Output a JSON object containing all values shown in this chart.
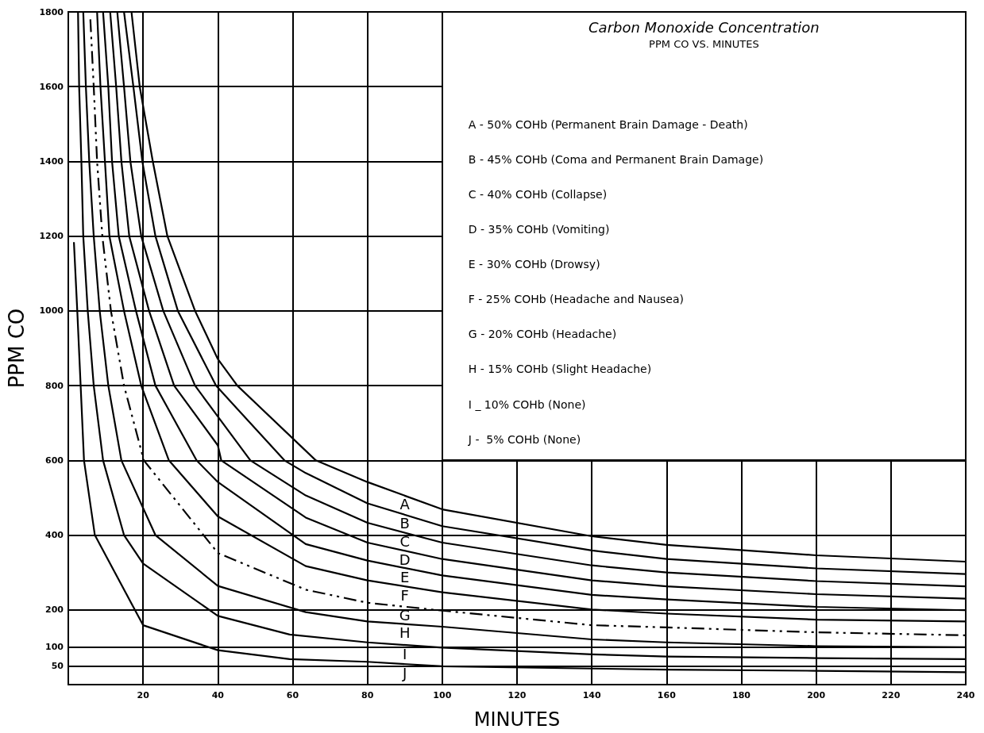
{
  "chart_data": {
    "type": "line",
    "title": "Carbon Monoxide Concentration",
    "subtitle": "PPM CO VS. MINUTES",
    "xlabel": "MINUTES",
    "ylabel": "PPM CO",
    "xlim": [
      0,
      240
    ],
    "xticks": [
      20,
      40,
      60,
      80,
      100,
      120,
      140,
      160,
      180,
      200,
      220,
      240
    ],
    "ylim": [
      0,
      1800
    ],
    "yticks": [
      50,
      100,
      200,
      400,
      600,
      800,
      1000,
      1200,
      1400,
      1600,
      1800
    ],
    "grid": true,
    "legend": false,
    "line_style": "solid",
    "annotations": [
      "A - 50% COHb (Permanent Brain Damage - Death)",
      "B - 45% COHb (Coma and Permanent Brain Damage)",
      "C - 40% COHb (Collapse)",
      "D - 35% COHb (Vomiting)",
      "E - 30% COHb (Drowsy)",
      "F - 25% COHb (Headache and Nausea)",
      "G - 20% COHb (Headache)",
      "H - 15% COHb (Slight Headache)",
      "I _ 10% COHb (None)",
      "J -  5% COHb (None)"
    ],
    "series": [
      {
        "name": "A",
        "color": "#000000",
        "x": [
          16.9,
          19.1,
          22.6,
          26.5,
          33.9,
          40,
          45.2,
          66.2,
          80,
          100,
          140,
          160,
          200,
          240
        ],
        "values": [
          1800,
          1600,
          1400,
          1200,
          1000,
          871,
          800,
          600,
          542,
          469,
          397,
          374,
          346,
          329
        ]
      },
      {
        "name": "B",
        "color": "#000000",
        "x": [
          14.9,
          17.4,
          19.8,
          23.3,
          29.3,
          39.5,
          57.8,
          63.5,
          80,
          100,
          140,
          160,
          200,
          240
        ],
        "values": [
          1800,
          1600,
          1400,
          1200,
          1000,
          800,
          600,
          566,
          485,
          424,
          359,
          336,
          311,
          296
        ]
      },
      {
        "name": "C",
        "color": "#000000",
        "x": [
          13.1,
          14.9,
          16.6,
          19.5,
          25.4,
          33.9,
          40,
          48.7,
          63.5,
          80,
          100,
          140,
          160,
          200,
          240
        ],
        "values": [
          1800,
          1600,
          1400,
          1200,
          1000,
          800,
          717,
          600,
          506,
          433,
          380,
          319,
          300,
          277,
          263
        ]
      },
      {
        "name": "D",
        "color": "#000000",
        "x": [
          11.2,
          12.8,
          14.2,
          16.3,
          21.6,
          28.3,
          40,
          40.9,
          63.5,
          80,
          100,
          140,
          160,
          200,
          240
        ],
        "values": [
          1800,
          1600,
          1400,
          1200,
          1000,
          800,
          640,
          600,
          447,
          380,
          336,
          279,
          263,
          242,
          230
        ]
      },
      {
        "name": "E",
        "color": "#000000",
        "x": [
          9.3,
          10.7,
          11.7,
          13.5,
          18.1,
          23.3,
          34.3,
          40,
          63.5,
          80,
          100,
          140,
          160,
          200,
          240
        ],
        "values": [
          1800,
          1600,
          1400,
          1200,
          1000,
          800,
          600,
          542,
          376,
          332,
          292,
          240,
          228,
          208,
          199
        ]
      },
      {
        "name": "F",
        "color": "#000000",
        "x": [
          7.7,
          8.6,
          9.8,
          11.0,
          14.9,
          19.5,
          26.9,
          40,
          63.5,
          80,
          100,
          140,
          160,
          200,
          240
        ],
        "values": [
          1800,
          1600,
          1400,
          1200,
          1000,
          800,
          600,
          450,
          317,
          279,
          247,
          201,
          190,
          174,
          169
        ]
      },
      {
        "name": "G",
        "color": "#000000",
        "line_style": "dashed",
        "x": [
          5.9,
          6.8,
          7.7,
          9.1,
          11.4,
          14.9,
          20.2,
          40,
          63.5,
          80,
          100,
          140,
          160,
          200,
          240
        ],
        "values": [
          1780,
          1600,
          1400,
          1200,
          1000,
          800,
          600,
          352,
          254,
          219,
          198,
          159,
          153,
          140,
          132
        ]
      },
      {
        "name": "H",
        "color": "#000000",
        "x": [
          4.0,
          4.7,
          5.6,
          6.8,
          8.4,
          10.7,
          14.2,
          23.3,
          40,
          63.5,
          80,
          100,
          140,
          160,
          200,
          240
        ],
        "values": [
          1800,
          1600,
          1400,
          1200,
          1000,
          800,
          600,
          400,
          264,
          194,
          169,
          155,
          121,
          113,
          103,
          100
        ]
      },
      {
        "name": "I",
        "color": "#000000",
        "x": [
          2.6,
          2.9,
          3.5,
          4.0,
          5.2,
          6.8,
          9.3,
          14.9,
          20,
          40,
          59.2,
          80,
          100,
          140,
          160,
          200,
          240
        ],
        "values": [
          1800,
          1600,
          1400,
          1200,
          1000,
          800,
          600,
          400,
          324,
          184,
          134,
          113,
          99,
          81,
          75,
          71,
          68
        ]
      },
      {
        "name": "J",
        "color": "#000000",
        "x": [
          1.5,
          2.4,
          3.3,
          4.2,
          7.1,
          20,
          40,
          59.2,
          80,
          100,
          140,
          160,
          200,
          240
        ],
        "values": [
          1184,
          1000,
          800,
          600,
          400,
          159,
          92,
          68,
          61,
          49,
          43,
          40,
          37,
          33
        ]
      }
    ]
  }
}
